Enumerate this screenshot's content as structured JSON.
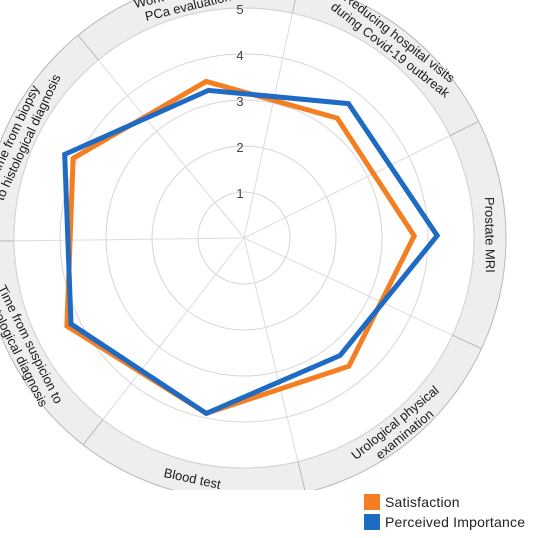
{
  "chart_data": {
    "type": "radar",
    "title": "",
    "categories": [
      [
        "Time from biopsy",
        "to histological diagnosis"
      ],
      [
        "Work days lost for",
        "PCa evaluation"
      ],
      [
        "Reducing hospital visits",
        "during Covid-19 outbreak"
      ],
      [
        "Prostate MRI"
      ],
      [
        "Urological physical",
        "examination"
      ],
      [
        "Blood test"
      ],
      [
        "Time from suspicion to",
        "histological diagnosis"
      ]
    ],
    "rlim": [
      0,
      5
    ],
    "ticks": [
      1,
      2,
      3,
      4,
      5
    ],
    "grid": true,
    "legend_position": "bottom-right",
    "series": [
      {
        "name": "Satisfaction",
        "color": "#F47E20",
        "values": [
          4.1,
          3.5,
          3.3,
          3.7,
          3.6,
          3.9,
          4.3
        ]
      },
      {
        "name": "Perceived Importance",
        "color": "#1F6BC4",
        "values": [
          4.3,
          3.3,
          3.7,
          4.2,
          3.3,
          3.9,
          4.2
        ]
      }
    ]
  }
}
